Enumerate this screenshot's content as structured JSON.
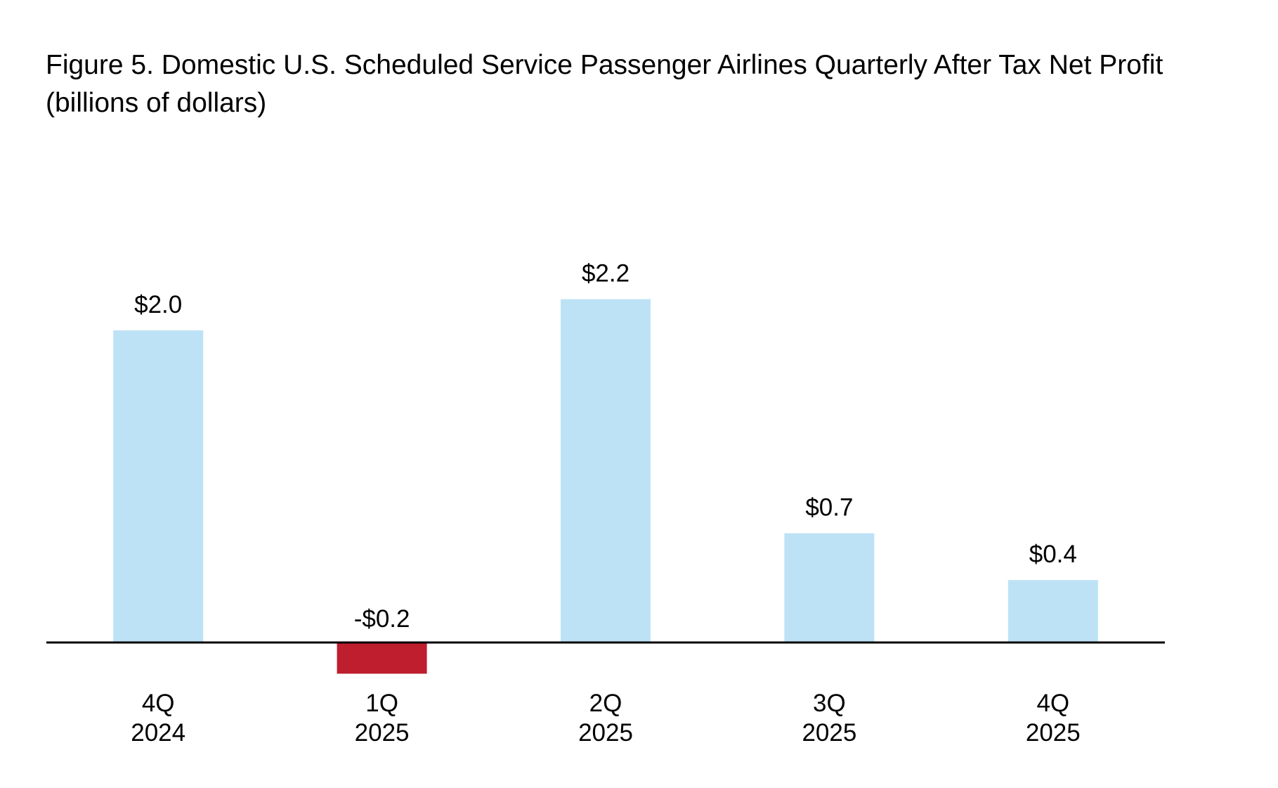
{
  "chart_data": {
    "type": "bar",
    "title": [
      "Figure 5. Domestic U.S. Scheduled Service Passenger Airlines Quarterly After Tax Net Profit",
      "(billions of dollars)"
    ],
    "categories": [
      [
        "4Q",
        "2024"
      ],
      [
        "1Q",
        "2025"
      ],
      [
        "2Q",
        "2025"
      ],
      [
        "3Q",
        "2025"
      ],
      [
        "4Q",
        "2025"
      ]
    ],
    "values": [
      2.0,
      -0.2,
      2.2,
      0.7,
      0.4
    ],
    "data_labels": [
      "$2.0",
      "-$0.2",
      "$2.2",
      "$0.7",
      "$0.4"
    ],
    "xlabel": "",
    "ylabel": "",
    "ylim": [
      -0.2,
      2.2
    ],
    "grid": false,
    "legend": "none",
    "colors": {
      "positive": "#bde2f5",
      "negative": "#be1e2d",
      "axis": "#000000"
    }
  }
}
